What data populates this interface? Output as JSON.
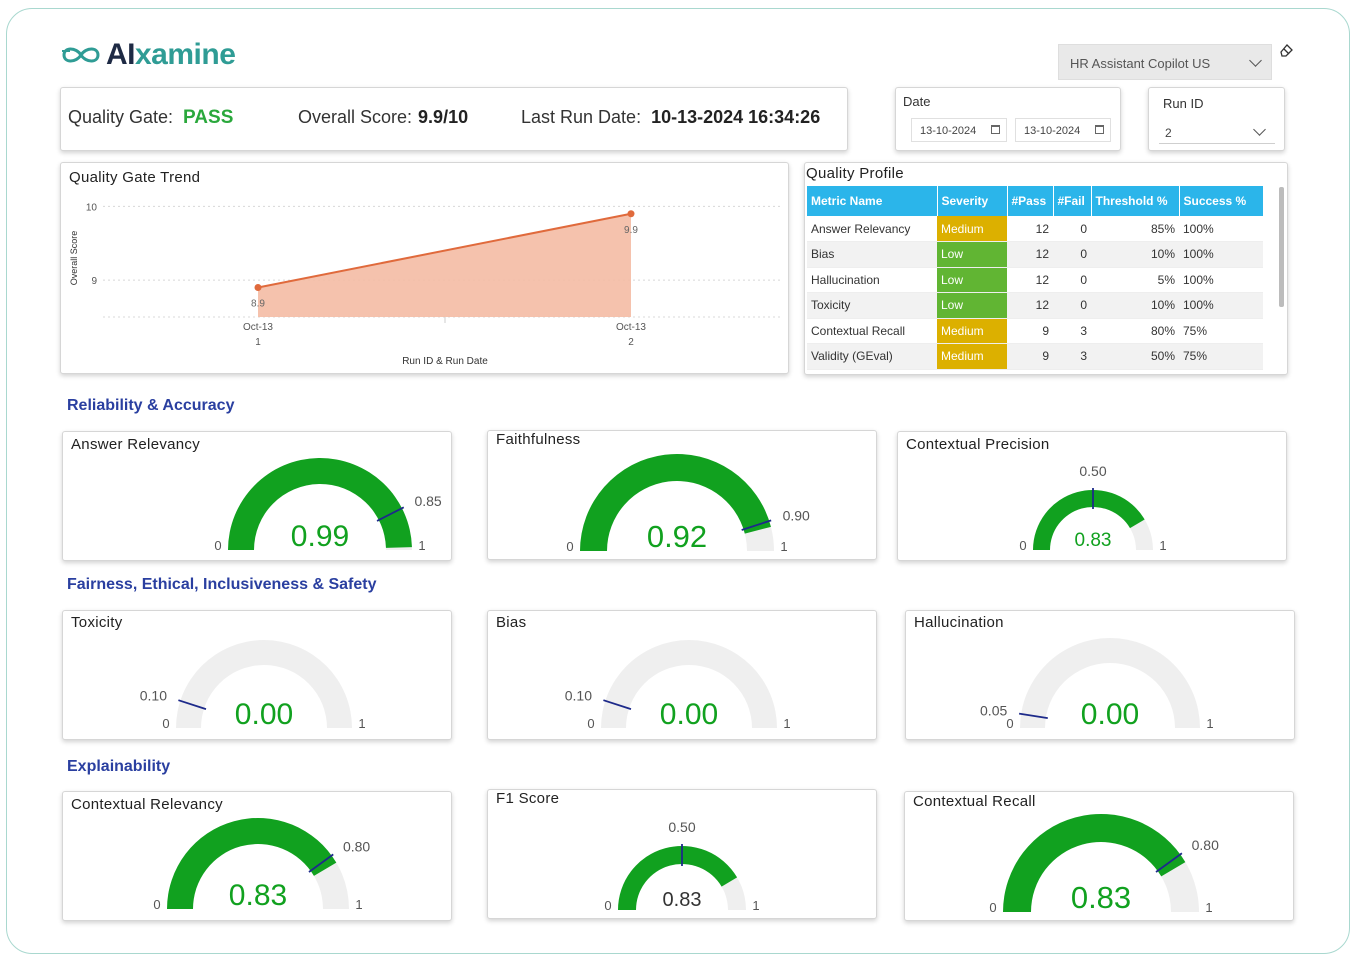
{
  "brand": {
    "logo_ai": "AI",
    "logo_rest": "xamine"
  },
  "app_selector": {
    "value": "HR Assistant Copilot US"
  },
  "summary": {
    "gate_label": "Quality Gate:",
    "gate_value": "PASS",
    "score_label": "Overall Score:",
    "score_value": "9.9/10",
    "last_run_label": "Last Run Date:",
    "last_run_value": "10-13-2024 16:34:26"
  },
  "date_filter": {
    "label": "Date",
    "from": "13-10-2024",
    "to": "13-10-2024"
  },
  "run_filter": {
    "label": "Run ID",
    "value": "2"
  },
  "trend": {
    "title": "Quality Gate Trend",
    "chart_data": {
      "type": "area",
      "xlabel": "Run ID & Run Date",
      "ylabel": "Overall Score",
      "categories": [
        {
          "date": "Oct-13",
          "run": "1"
        },
        {
          "date": "Oct-13",
          "run": "2"
        }
      ],
      "values": [
        8.9,
        9.9
      ],
      "value_labels": [
        "8.9",
        "9.9"
      ],
      "yticks": [
        "9",
        "10"
      ],
      "ylim": [
        8.5,
        10.1
      ],
      "grid": true,
      "color": "#f4bba4",
      "line_color": "#e06a3c"
    }
  },
  "profile": {
    "title": "Quality Profile",
    "columns": [
      "Metric Name",
      "Severity",
      "#Pass",
      "#Fail",
      "Threshold %",
      "Success %"
    ],
    "rows": [
      {
        "metric": "Answer Relevancy",
        "severity": "Medium",
        "pass": "12",
        "fail": "0",
        "threshold": "85%",
        "success": "100%"
      },
      {
        "metric": "Bias",
        "severity": "Low",
        "pass": "12",
        "fail": "0",
        "threshold": "10%",
        "success": "100%"
      },
      {
        "metric": "Hallucination",
        "severity": "Low",
        "pass": "12",
        "fail": "0",
        "threshold": "5%",
        "success": "100%"
      },
      {
        "metric": "Toxicity",
        "severity": "Low",
        "pass": "12",
        "fail": "0",
        "threshold": "10%",
        "success": "100%"
      },
      {
        "metric": "Contextual Recall",
        "severity": "Medium",
        "pass": "9",
        "fail": "3",
        "threshold": "80%",
        "success": "75%"
      },
      {
        "metric": "Validity (GEval)",
        "severity": "Medium",
        "pass": "9",
        "fail": "3",
        "threshold": "50%",
        "success": "75%"
      }
    ],
    "colors": {
      "header": "#2bb5ea",
      "medium": "#dcb000",
      "low": "#61b533"
    }
  },
  "sections": {
    "reliability": "Reliability & Accuracy",
    "fairness": "Fairness, Ethical, Inclusiveness & Safety",
    "explainability": "Explainability"
  },
  "gauges": [
    {
      "title": "Answer Relevancy",
      "value": 0.99,
      "value_label": "0.99",
      "target": 0.85,
      "target_label": "0.85",
      "min_label": "0",
      "max_label": "1"
    },
    {
      "title": "Faithfulness",
      "value": 0.92,
      "value_label": "0.92",
      "target": 0.9,
      "target_label": "0.90",
      "min_label": "0",
      "max_label": "1"
    },
    {
      "title": "Contextual Precision",
      "value": 0.83,
      "value_label": "0.83",
      "target": 0.5,
      "target_label": "0.50",
      "min_label": "0",
      "max_label": "1"
    },
    {
      "title": "Toxicity",
      "value": 0.0,
      "value_label": "0.00",
      "target": 0.1,
      "target_label": "0.10",
      "min_label": "0",
      "max_label": "1"
    },
    {
      "title": "Bias",
      "value": 0.0,
      "value_label": "0.00",
      "target": 0.1,
      "target_label": "0.10",
      "min_label": "0",
      "max_label": "1"
    },
    {
      "title": "Hallucination",
      "value": 0.0,
      "value_label": "0.00",
      "target": 0.05,
      "target_label": "0.05",
      "min_label": "0",
      "max_label": "1"
    },
    {
      "title": "Contextual Relevancy",
      "value": 0.83,
      "value_label": "0.83",
      "target": 0.8,
      "target_label": "0.80",
      "min_label": "0",
      "max_label": "1"
    },
    {
      "title": "F1 Score",
      "value": 0.83,
      "value_label": "0.83",
      "target": 0.5,
      "target_label": "0.50",
      "min_label": "0",
      "max_label": "1"
    },
    {
      "title": "Contextual Recall",
      "value": 0.83,
      "value_label": "0.83",
      "target": 0.8,
      "target_label": "0.80",
      "min_label": "0",
      "max_label": "1"
    }
  ],
  "gauge_colors": {
    "fill": "#11a11f",
    "track": "#efefef",
    "target": "#1d2a8a"
  }
}
